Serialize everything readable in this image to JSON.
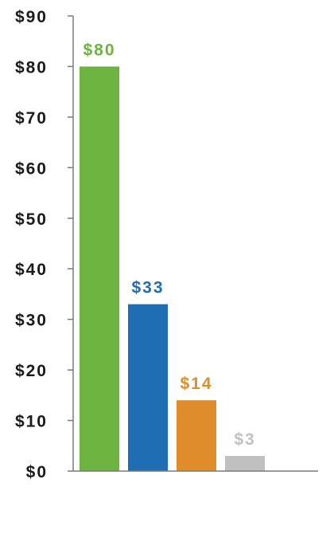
{
  "chart_data": {
    "type": "bar",
    "categories": [
      "",
      "",
      "",
      ""
    ],
    "values": [
      80,
      33,
      14,
      3
    ],
    "data_labels": [
      "$80",
      "$33",
      "$14",
      "$3"
    ],
    "colors": [
      "#6db33f",
      "#1f6db3",
      "#df8c2a",
      "#c0c0c0"
    ],
    "label_colors": [
      "#6db33f",
      "#1f6db3",
      "#df8c2a",
      "#c0c0c0"
    ],
    "y_ticks": [
      "$0",
      "$10",
      "$20",
      "$30",
      "$40",
      "$50",
      "$60",
      "$70",
      "$80",
      "$90"
    ],
    "y_tick_values": [
      0,
      10,
      20,
      30,
      40,
      50,
      60,
      70,
      80,
      90
    ],
    "ylim": [
      0,
      90
    ],
    "title": "",
    "xlabel": "",
    "ylabel": "",
    "grid": false,
    "axis_color": "#7a7a7a"
  }
}
